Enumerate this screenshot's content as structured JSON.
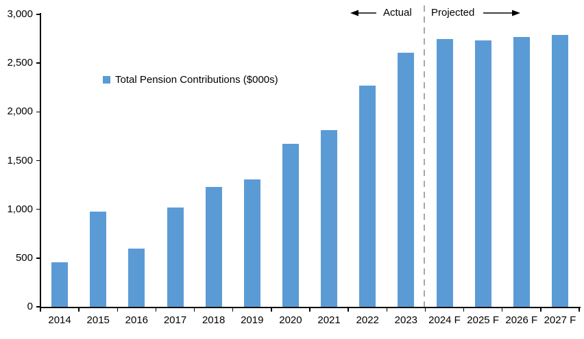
{
  "chart_data": {
    "type": "bar",
    "title": "",
    "legend": {
      "label": "Total Pension Contributions ($000s)"
    },
    "categories": [
      "2014",
      "2015",
      "2016",
      "2017",
      "2018",
      "2019",
      "2020",
      "2021",
      "2022",
      "2023",
      "2024 F",
      "2025 F",
      "2026 F",
      "2027 F"
    ],
    "values": [
      460,
      980,
      600,
      1020,
      1230,
      1310,
      1670,
      1810,
      2270,
      2610,
      2750,
      2730,
      2770,
      2790
    ],
    "xlabel": "",
    "ylabel": "",
    "ylim": [
      0,
      3000
    ],
    "ytick_interval": 500,
    "ytick_labels": [
      "0",
      "500",
      "1,000",
      "1,500",
      "2,000",
      "2,500",
      "3,000"
    ],
    "grid": false,
    "legend_position": "inside-upper-left",
    "annotations": {
      "actual_label": "Actual",
      "projected_label": "Projected",
      "divider_after_category": "2023"
    },
    "colors": {
      "bar": "#5B9BD5",
      "divider": "#A6A6A6",
      "axis": "#000000",
      "text": "#000000"
    }
  }
}
